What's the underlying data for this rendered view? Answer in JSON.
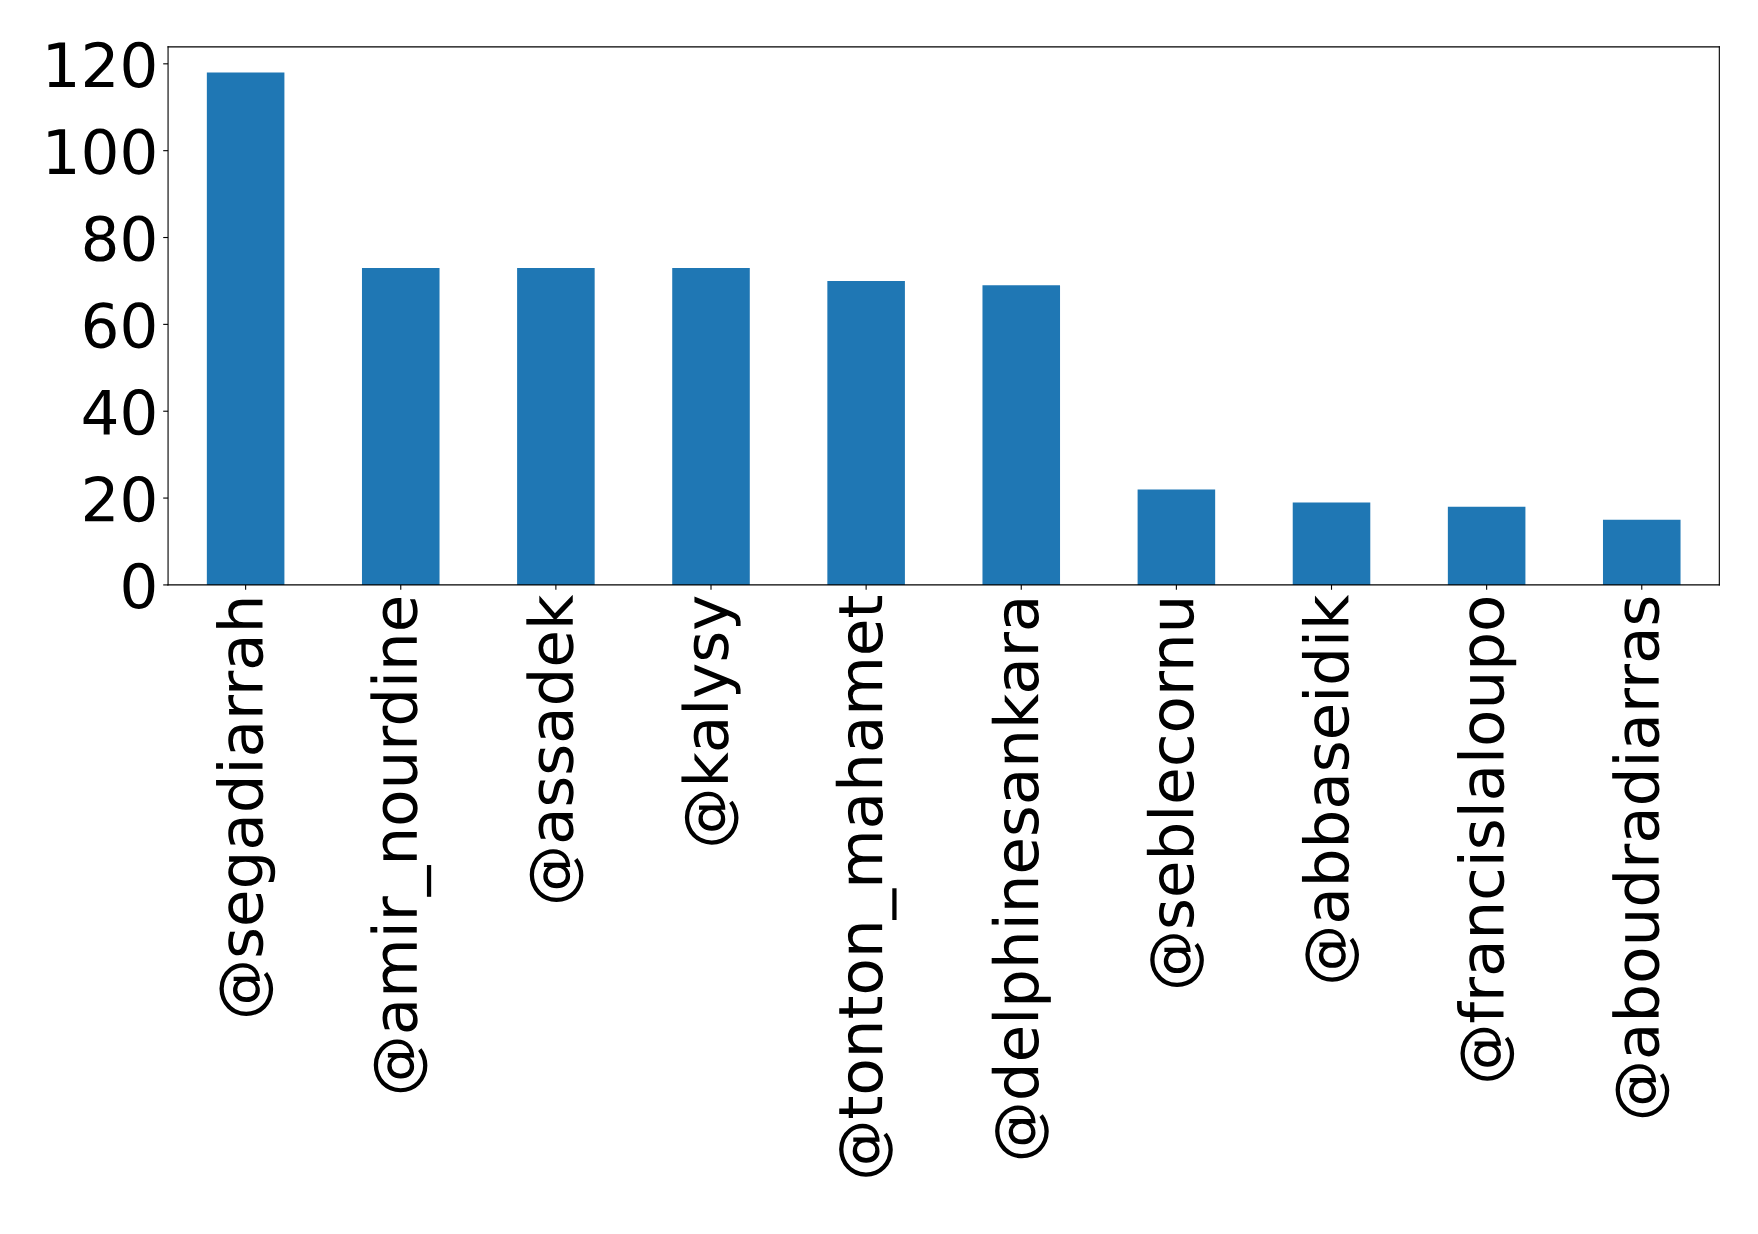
{
  "chart_data": {
    "type": "bar",
    "categories": [
      "@segadiarrah",
      "@amir_nourdine",
      "@assadek",
      "@kalysy",
      "@tonton_mahamet",
      "@delphinesankara",
      "@seblecornu",
      "@abbaseidik",
      "@francislaloupo",
      "@aboudradiarras"
    ],
    "values": [
      118,
      73,
      73,
      73,
      70,
      69,
      22,
      19,
      18,
      15
    ],
    "color": "#1f77b4",
    "ylim": [
      0,
      123.9
    ],
    "yticks": [
      0,
      20,
      40,
      60,
      80,
      100,
      120
    ],
    "grid": false
  }
}
